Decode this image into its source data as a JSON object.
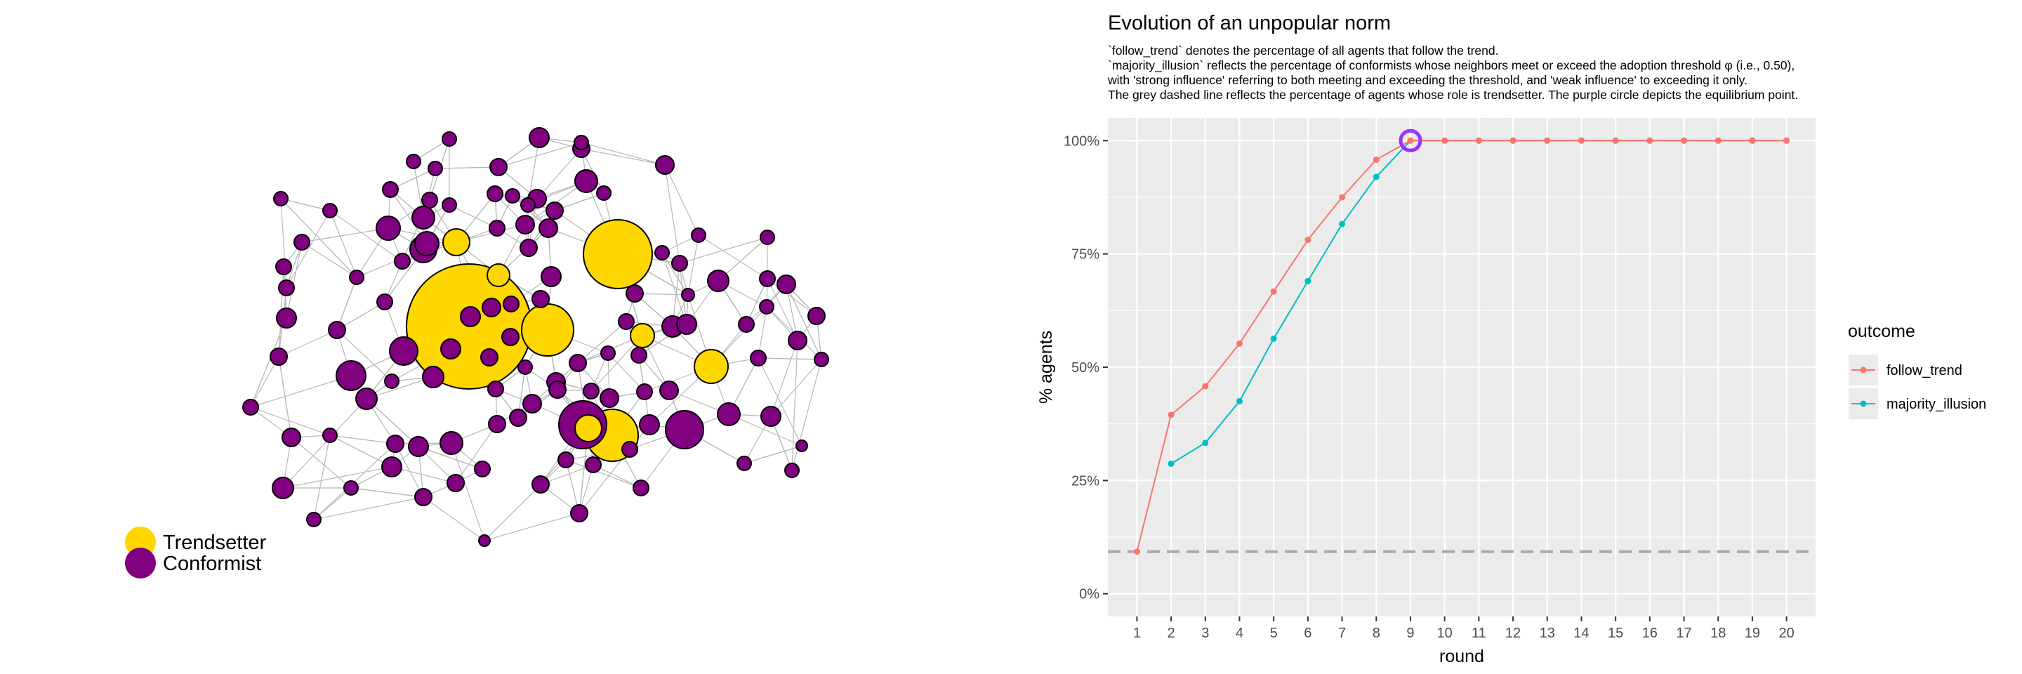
{
  "network": {
    "legend": [
      {
        "label": "Trendsetter",
        "color": "#FFD700"
      },
      {
        "label": "Conformist",
        "color": "#800080"
      }
    ]
  },
  "chart_data": {
    "type": "line",
    "title": "Evolution of an unpopular norm",
    "subtitle_lines": [
      "`follow_trend` denotes the percentage of all agents that follow the trend.",
      "`majority_illusion` reflects the percentage of conformists whose neighbors meet or exceed the adoption threshold φ (i.e., 0.50),",
      "with 'strong influence' referring to both meeting and exceeding the threshold, and 'weak influence' to exceeding it only.",
      "The grey dashed line reflects the percentage of agents whose role is trendsetter. The purple circle depicts the equilibrium point."
    ],
    "xlabel": "round",
    "ylabel": "% agents",
    "x": [
      1,
      2,
      3,
      4,
      5,
      6,
      7,
      8,
      9,
      10,
      11,
      12,
      13,
      14,
      15,
      16,
      17,
      18,
      19,
      20
    ],
    "xlim": [
      0.15,
      20.85
    ],
    "ylim": [
      -5,
      105
    ],
    "yticks": [
      0,
      25,
      50,
      75,
      100
    ],
    "ytick_labels": [
      "0%",
      "25%",
      "50%",
      "75%",
      "100%"
    ],
    "series": [
      {
        "name": "follow_trend",
        "color": "#F8766D",
        "values": [
          9.3,
          39.5,
          45.8,
          55.2,
          66.7,
          78.1,
          87.5,
          95.8,
          100,
          100,
          100,
          100,
          100,
          100,
          100,
          100,
          100,
          100,
          100,
          100
        ]
      },
      {
        "name": "majority_illusion",
        "color": "#00BFC4",
        "values": [
          null,
          28.7,
          33.3,
          42.5,
          56.3,
          69.0,
          81.6,
          92.0,
          100,
          100,
          100,
          100,
          100,
          100,
          100,
          100,
          100,
          100,
          100,
          100
        ]
      }
    ],
    "reference_line": {
      "y": 9.3,
      "color": "#AAAAAA",
      "style": "dashed"
    },
    "equilibrium": {
      "x": 9,
      "y": 100,
      "color": "#9B30FF"
    },
    "legend": {
      "title": "outcome",
      "placement": "right"
    },
    "grid": true,
    "panel_background": "#EBEBEB"
  }
}
